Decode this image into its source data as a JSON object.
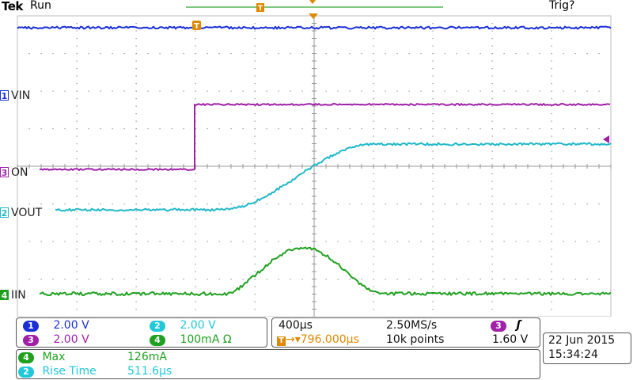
{
  "status": {
    "brand": "Tek",
    "acq_state": "Run",
    "trigger_state": "Trig?"
  },
  "channels": [
    {
      "id": "1",
      "label": "VIN",
      "color": "#1a2fd6"
    },
    {
      "id": "3",
      "label": "ON",
      "color": "#a020a8"
    },
    {
      "id": "2",
      "label": "VOUT",
      "color": "#20b8c8"
    },
    {
      "id": "4",
      "label": "IIN",
      "color": "#1fa01f"
    }
  ],
  "markers": {
    "trigger_position": "T",
    "record_position": "T"
  },
  "vertical": {
    "ch1": {
      "num": "1",
      "scale": "2.00 V",
      "color": "#1a2fd6"
    },
    "ch2": {
      "num": "2",
      "scale": "2.00 V",
      "color": "#20c8d8"
    },
    "ch3": {
      "num": "3",
      "scale": "2.00 V",
      "color": "#a020a8"
    },
    "ch4": {
      "num": "4",
      "scale": "100mA Ω",
      "color": "#1fa01f"
    }
  },
  "horizontal": {
    "timebase": "400µs",
    "sample_rate": "2.50MS/s",
    "trigger_delay": "▾796.000µs",
    "record_length": "10k points"
  },
  "trigger": {
    "source": "3",
    "slope_icon": "rising-edge-icon",
    "level": "1.60 V"
  },
  "measurements": [
    {
      "ch": "4",
      "name": "Max",
      "value": "126mA",
      "color": "#1fa01f"
    },
    {
      "ch": "2",
      "name": "Rise Time",
      "value": "511.6µs",
      "color": "#20c8d8"
    }
  ],
  "clock": {
    "date": "22 Jun  2015",
    "time": "15:34:24"
  }
}
